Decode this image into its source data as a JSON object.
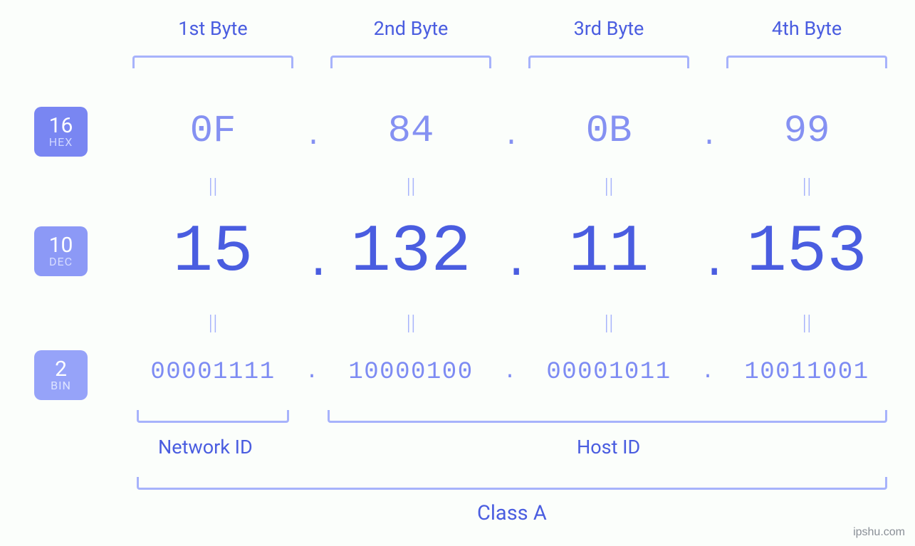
{
  "type": "infographic",
  "subject": "IPv4 address byte breakdown",
  "colors": {
    "background": "#fbfefb",
    "primary_text": "#4a5de0",
    "secondary_text": "#8591f2",
    "tertiary_text": "#7d8bf3",
    "bracket": "#a7b3fb",
    "badge_hex_bg": "#7986f2",
    "badge_dec_bg": "#8c99f6",
    "badge_bin_bg": "#96a3f9",
    "badge_num": "#ffffff",
    "badge_sub": "#d7ddff",
    "watermark": "#8a8f97"
  },
  "typography": {
    "byte_label_fontsize": 27,
    "hex_fontsize": 54,
    "dec_fontsize": 94,
    "bin_fontsize": 34,
    "equals_fontsize": 30,
    "footer_label_fontsize": 27,
    "class_label_fontsize": 29,
    "badge_num_fontsize": 30,
    "badge_sub_fontsize": 16,
    "mono_font": "Consolas"
  },
  "badges": {
    "hex": {
      "base": "16",
      "label": "HEX"
    },
    "dec": {
      "base": "10",
      "label": "DEC"
    },
    "bin": {
      "base": "2",
      "label": "BIN"
    }
  },
  "byte_headers": [
    "1st Byte",
    "2nd Byte",
    "3rd Byte",
    "4th Byte"
  ],
  "separator": ".",
  "equals_glyph": "||",
  "bytes": [
    {
      "hex": "0F",
      "dec": "15",
      "bin": "00001111"
    },
    {
      "hex": "84",
      "dec": "132",
      "bin": "10000100"
    },
    {
      "hex": "0B",
      "dec": "11",
      "bin": "00001011"
    },
    {
      "hex": "99",
      "dec": "153",
      "bin": "10011001"
    }
  ],
  "footer": {
    "network_id_label": "Network ID",
    "host_id_label": "Host ID",
    "class_label": "Class A",
    "network_id_bytes": 1,
    "host_id_bytes": 3
  },
  "watermark": "ipshu.com"
}
